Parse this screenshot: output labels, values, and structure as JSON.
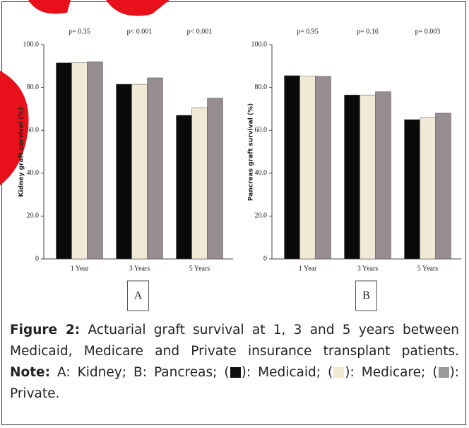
{
  "chart_data": [
    {
      "type": "bar",
      "panel": "A",
      "ylabel": "Kidney graft survival (%)",
      "categories": [
        "1 Year",
        "3 Years",
        "5 Years"
      ],
      "annotations": [
        "p= 0.35",
        "p< 0.001",
        "p< 0.001"
      ],
      "series": [
        {
          "color": "#0a0a0a",
          "values": [
            91.5,
            81.5,
            67
          ]
        },
        {
          "color": "#efe9d6",
          "values": [
            91.5,
            81.5,
            70.5
          ]
        },
        {
          "color": "#958d90",
          "values": [
            92,
            84.5,
            75
          ]
        }
      ],
      "ylim": [
        0,
        100
      ],
      "yticks": [
        0,
        {
          "value": 20,
          "label": "20.0"
        },
        {
          "value": 40,
          "label": "40.0"
        },
        {
          "value": 60,
          "label": "60.0"
        },
        {
          "value": 80,
          "label": "80.0"
        },
        {
          "value": 100,
          "label": "100.0"
        }
      ]
    },
    {
      "type": "bar",
      "panel": "B",
      "ylabel": "Pancreas graft survival (%)",
      "categories": [
        "1 Year",
        "3 Years",
        "5 Years"
      ],
      "annotations": [
        "p= 0.95",
        "p= 0.16",
        "p= 0.003"
      ],
      "series": [
        {
          "color": "#0a0a0a",
          "values": [
            85.5,
            76.5,
            65
          ]
        },
        {
          "color": "#efe9d6",
          "values": [
            85.3,
            76.5,
            66
          ]
        },
        {
          "color": "#958d90",
          "values": [
            85.2,
            78,
            68
          ]
        }
      ],
      "ylim": [
        0,
        100
      ],
      "yticks": [
        0,
        {
          "value": 20,
          "label": "20.0"
        },
        {
          "value": 40,
          "label": "40.0"
        },
        {
          "value": 60,
          "label": "60.0"
        },
        {
          "value": 80,
          "label": "80.0"
        },
        {
          "value": 100,
          "label": "100.0"
        }
      ]
    }
  ],
  "caption": {
    "label": "Figure 2:",
    "text": "Actuarial graft survival at 1, 3 and 5 years between Medicaid, Medicare and Private insurance transplant patients.",
    "note_label": "Note:",
    "note_text": "A: Kidney; B: Pancreas; (",
    "medicaid": "): Medicaid; (",
    "medicare": "): Medicare; (",
    "private": "): Private."
  }
}
